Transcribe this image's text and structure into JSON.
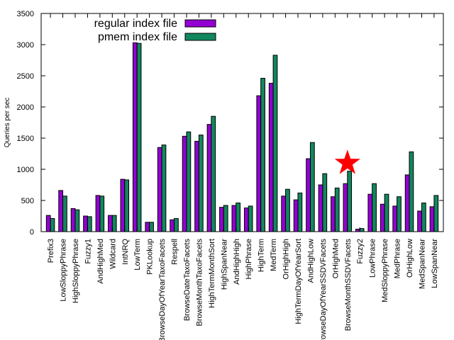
{
  "chart_data": {
    "type": "bar",
    "title": "",
    "xlabel": "",
    "ylabel": "Queries per sec",
    "ylim": [
      0,
      3500
    ],
    "yticks": [
      0,
      500,
      1000,
      1500,
      2000,
      2500,
      3000,
      3500
    ],
    "grid": false,
    "legend_position": "top-left",
    "categories": [
      "Prefix3",
      "LowSloppyPhrase",
      "HighSloppyPhrase",
      "Fuzzy1",
      "AndHighMed",
      "Wildcard",
      "IntNRQ",
      "LowTerm",
      "PKLookup",
      "BrowseDayOfYearTaxoFacets",
      "Respell",
      "BrowseDateTaxoFacets",
      "BrowseMonthTaxoFacets",
      "HighTermMonthSort",
      "HighSpanNear",
      "AndHighHigh",
      "HighPhrase",
      "HighTerm",
      "MedTerm",
      "OrHighHigh",
      "HighTermDayOfYearSort",
      "AndHighLow",
      "BrowseDayOfYearSSDVFacets",
      "OrHighMed",
      "BrowseMonthSSDVFacets",
      "Fuzzy2",
      "LowPhrase",
      "MedSloppyPhrase",
      "MedPhrase",
      "OrHighLow",
      "MedSpanNear",
      "LowSpanNear"
    ],
    "series": [
      {
        "name": "regular index file",
        "color": "#9400d3",
        "values": [
          260,
          660,
          370,
          250,
          580,
          260,
          840,
          3030,
          150,
          1350,
          190,
          1530,
          1450,
          1720,
          390,
          420,
          380,
          2180,
          2380,
          570,
          510,
          1170,
          750,
          560,
          770,
          40,
          600,
          440,
          410,
          910,
          330,
          400
        ]
      },
      {
        "name": "pmem index file",
        "color": "#12875e",
        "values": [
          210,
          570,
          350,
          240,
          570,
          260,
          830,
          3020,
          150,
          1390,
          210,
          1600,
          1550,
          1850,
          420,
          460,
          410,
          2460,
          2830,
          680,
          620,
          1430,
          930,
          700,
          970,
          50,
          770,
          600,
          560,
          1280,
          460,
          580
        ]
      }
    ],
    "annotation": {
      "type": "star",
      "color": "#ff0000",
      "category": "BrowseMonthSSDVFacets",
      "y": 1100
    }
  }
}
